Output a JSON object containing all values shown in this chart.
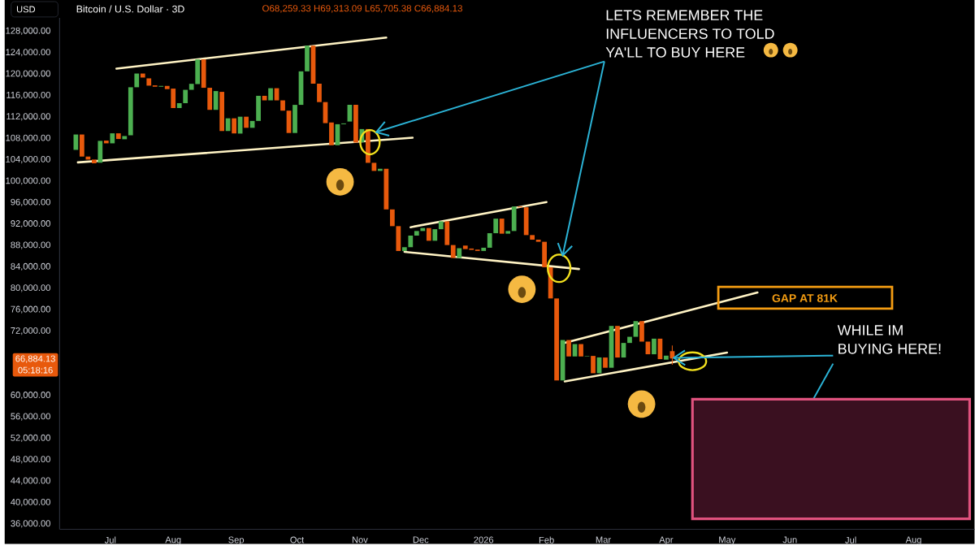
{
  "chart_data": {
    "type": "candlestick",
    "title": "Bitcoin / U.S. Dollar · 3D",
    "x": [
      "2025-06-14",
      "2025-06-17",
      "2025-06-20",
      "2025-06-23",
      "2025-06-26",
      "2025-06-29",
      "2025-07-02",
      "2025-07-05",
      "2025-07-08",
      "2025-07-11",
      "2025-07-14",
      "2025-07-17",
      "2025-07-20",
      "2025-07-23",
      "2025-07-26",
      "2025-07-29",
      "2025-08-01",
      "2025-08-04",
      "2025-08-07",
      "2025-08-10",
      "2025-08-13",
      "2025-08-16",
      "2025-08-19",
      "2025-08-22",
      "2025-08-25",
      "2025-08-28",
      "2025-08-31",
      "2025-09-03",
      "2025-09-06",
      "2025-09-09",
      "2025-09-12",
      "2025-09-15",
      "2025-09-18",
      "2025-09-21",
      "2025-09-24",
      "2025-09-27",
      "2025-09-30",
      "2025-10-03",
      "2025-10-06",
      "2025-10-09",
      "2025-10-12",
      "2025-10-15",
      "2025-10-18",
      "2025-10-21",
      "2025-10-24",
      "2025-10-27",
      "2025-10-30",
      "2025-11-02",
      "2025-11-05",
      "2025-11-08",
      "2025-11-11",
      "2025-11-14",
      "2025-11-17",
      "2025-11-20",
      "2025-11-23",
      "2025-11-26",
      "2025-11-29",
      "2025-12-02",
      "2025-12-05",
      "2025-12-08",
      "2025-12-11",
      "2025-12-14",
      "2025-12-17",
      "2025-12-20",
      "2025-12-23",
      "2025-12-26",
      "2025-12-29",
      "2026-01-01",
      "2026-01-04",
      "2026-01-07",
      "2026-01-10",
      "2026-01-13",
      "2026-01-16",
      "2026-01-19",
      "2026-01-22",
      "2026-01-25",
      "2026-01-28",
      "2026-01-31",
      "2026-02-03",
      "2026-02-06",
      "2026-02-09",
      "2026-02-12",
      "2026-02-15",
      "2026-02-18",
      "2026-02-21",
      "2026-02-24",
      "2026-02-27",
      "2026-03-02",
      "2026-03-05",
      "2026-03-08",
      "2026-03-11",
      "2026-03-14",
      "2026-03-17",
      "2026-03-20",
      "2026-03-23",
      "2026-03-26",
      "2026-03-29",
      "2026-04-01",
      "2026-04-04"
    ],
    "ohlc": [
      [
        105840,
        108710,
        105840,
        108710
      ],
      [
        108710,
        108710,
        104590,
        104590
      ],
      [
        104590,
        104590,
        104030,
        104030
      ],
      [
        104030,
        104030,
        103330,
        103330
      ],
      [
        103440,
        107520,
        103440,
        107520
      ],
      [
        107570,
        107570,
        107060,
        107060
      ],
      [
        107060,
        108930,
        107060,
        108930
      ],
      [
        108930,
        108930,
        107870,
        107870
      ],
      [
        107820,
        108420,
        107820,
        108420
      ],
      [
        108560,
        117530,
        108560,
        117530
      ],
      [
        117530,
        120090,
        117530,
        120090
      ],
      [
        120090,
        120090,
        119340,
        119340
      ],
      [
        119190,
        119190,
        117830,
        117830
      ],
      [
        117880,
        117880,
        117630,
        117630
      ],
      [
        117630,
        117780,
        117630,
        117780
      ],
      [
        117780,
        117780,
        117180,
        117180
      ],
      [
        117280,
        117280,
        113650,
        113650
      ],
      [
        113650,
        114560,
        113650,
        114560
      ],
      [
        114560,
        117050,
        114560,
        117050
      ],
      [
        117050,
        118170,
        117050,
        118170
      ],
      [
        118120,
        122740,
        118120,
        122740
      ],
      [
        122740,
        122740,
        117430,
        117430
      ],
      [
        117430,
        117430,
        113310,
        113310
      ],
      [
        113310,
        116820,
        113310,
        116820
      ],
      [
        116670,
        116670,
        109360,
        109360
      ],
      [
        109360,
        111730,
        109360,
        111730
      ],
      [
        111730,
        111730,
        108910,
        108910
      ],
      [
        108880,
        112030,
        108880,
        112030
      ],
      [
        112030,
        112030,
        109960,
        109960
      ],
      [
        109960,
        111240,
        109960,
        111240
      ],
      [
        111240,
        115930,
        111240,
        115930
      ],
      [
        115930,
        115930,
        115080,
        115080
      ],
      [
        115080,
        117350,
        115080,
        117350
      ],
      [
        117350,
        117350,
        115080,
        115080
      ],
      [
        115080,
        115080,
        113160,
        113160
      ],
      [
        113160,
        113160,
        108990,
        108990
      ],
      [
        108990,
        114240,
        108990,
        114240
      ],
      [
        114240,
        120500,
        114240,
        120500
      ],
      [
        120500,
        125300,
        120500,
        125300
      ],
      [
        125300,
        125300,
        118200,
        118200
      ],
      [
        118200,
        118200,
        114760,
        114760
      ],
      [
        114760,
        114760,
        110830,
        110830
      ],
      [
        110950,
        110950,
        106700,
        106700
      ],
      [
        106700,
        110630,
        106700,
        110630
      ],
      [
        110630,
        110780,
        110630,
        110780
      ],
      [
        111130,
        114250,
        111130,
        114250
      ],
      [
        114250,
        114250,
        107200,
        107200
      ],
      [
        107270,
        109720,
        107270,
        109720
      ],
      [
        109720,
        109720,
        103420,
        103420
      ],
      [
        103420,
        103420,
        101910,
        101910
      ],
      [
        101910,
        102310,
        101910,
        102310
      ],
      [
        102310,
        102310,
        94720,
        94720
      ],
      [
        94720,
        94720,
        91600,
        91600
      ],
      [
        91600,
        91600,
        86960,
        86960
      ],
      [
        86960,
        87670,
        86960,
        87670
      ],
      [
        87670,
        89830,
        87670,
        89830
      ],
      [
        89830,
        90690,
        89830,
        90690
      ],
      [
        90690,
        91250,
        90690,
        91250
      ],
      [
        91250,
        91250,
        88870,
        88870
      ],
      [
        88870,
        91030,
        88870,
        91030
      ],
      [
        91030,
        92500,
        91030,
        92500
      ],
      [
        92500,
        92500,
        88070,
        88070
      ],
      [
        88070,
        88070,
        85660,
        85660
      ],
      [
        85660,
        87480,
        85660,
        87480
      ],
      [
        87970,
        87970,
        87320,
        87320
      ],
      [
        87420,
        87420,
        87170,
        87170
      ],
      [
        87220,
        87220,
        86970,
        86970
      ],
      [
        86970,
        87570,
        86970,
        87570
      ],
      [
        87570,
        90280,
        87570,
        90280
      ],
      [
        90280,
        93000,
        90280,
        93000
      ],
      [
        93000,
        93000,
        90190,
        90190
      ],
      [
        90190,
        90690,
        90190,
        90690
      ],
      [
        90690,
        95270,
        90690,
        95270
      ],
      [
        95270,
        95270,
        95120,
        95120
      ],
      [
        95120,
        95120,
        89930,
        89930
      ],
      [
        89930,
        89930,
        89070,
        89070
      ],
      [
        89070,
        89070,
        88680,
        88680
      ],
      [
        88680,
        88680,
        83930,
        83930
      ],
      [
        83930,
        83930,
        78100,
        78100
      ],
      [
        78100,
        78100,
        62790,
        62790
      ],
      [
        62790,
        70340,
        62790,
        70340
      ],
      [
        70340,
        70340,
        67270,
        67270
      ],
      [
        67270,
        69580,
        67270,
        69580
      ],
      [
        69580,
        69580,
        67270,
        67270
      ],
      [
        67270,
        67350,
        67270,
        67350
      ],
      [
        67370,
        67370,
        64140,
        64140
      ],
      [
        64140,
        67090,
        64140,
        67090
      ],
      [
        67070,
        67070,
        65160,
        65160
      ],
      [
        65160,
        72970,
        65160,
        72970
      ],
      [
        72970,
        72970,
        67070,
        67070
      ],
      [
        67070,
        69790,
        67070,
        69790
      ],
      [
        69790,
        70940,
        69790,
        70940
      ],
      [
        70940,
        73870,
        70940,
        73870
      ],
      [
        73870,
        73870,
        70040,
        70040
      ],
      [
        70040,
        70040,
        67680,
        67680
      ],
      [
        67680,
        70590,
        67680,
        70590
      ],
      [
        70590,
        70590,
        66770,
        66770
      ],
      [
        66670,
        67420,
        66670,
        67420
      ],
      [
        68259.33,
        69313.09,
        65705.38,
        66884.13
      ]
    ],
    "colors": [
      "#4caf50",
      "#e8590c",
      "#e8590c",
      "#e8590c",
      "#4caf50",
      "#e8590c",
      "#4caf50",
      "#e8590c",
      "#4caf50",
      "#4caf50",
      "#4caf50",
      "#e8590c",
      "#e8590c",
      "#e8590c",
      "#4caf50",
      "#e8590c",
      "#e8590c",
      "#4caf50",
      "#4caf50",
      "#4caf50",
      "#4caf50",
      "#e8590c",
      "#e8590c",
      "#4caf50",
      "#e8590c",
      "#4caf50",
      "#e8590c",
      "#4caf50",
      "#e8590c",
      "#4caf50",
      "#4caf50",
      "#e8590c",
      "#4caf50",
      "#e8590c",
      "#e8590c",
      "#e8590c",
      "#4caf50",
      "#4caf50",
      "#4caf50",
      "#e8590c",
      "#e8590c",
      "#e8590c",
      "#e8590c",
      "#4caf50",
      "#4caf50",
      "#4caf50",
      "#e8590c",
      "#4caf50",
      "#e8590c",
      "#e8590c",
      "#4caf50",
      "#e8590c",
      "#e8590c",
      "#e8590c",
      "#4caf50",
      "#4caf50",
      "#4caf50",
      "#4caf50",
      "#e8590c",
      "#4caf50",
      "#4caf50",
      "#e8590c",
      "#e8590c",
      "#4caf50",
      "#e8590c",
      "#e8590c",
      "#e8590c",
      "#4caf50",
      "#4caf50",
      "#4caf50",
      "#e8590c",
      "#4caf50",
      "#4caf50",
      "#e8590c",
      "#e8590c",
      "#e8590c",
      "#e8590c",
      "#e8590c",
      "#e8590c",
      "#e8590c",
      "#4caf50",
      "#e8590c",
      "#4caf50",
      "#e8590c",
      "#4caf50",
      "#e8590c",
      "#4caf50",
      "#e8590c",
      "#4caf50",
      "#e8590c",
      "#4caf50",
      "#4caf50",
      "#4caf50",
      "#e8590c",
      "#e8590c",
      "#4caf50",
      "#e8590c",
      "#4caf50",
      "#e8590c"
    ],
    "series": [
      {
        "type": "line",
        "color": "#fff3c4",
        "x": [
          "2025-07-04",
          "2025-11-14"
        ],
        "values": [
          121000,
          126800
        ]
      },
      {
        "type": "line",
        "color": "#fff3c4",
        "x": [
          "2025-06-15",
          "2025-11-27"
        ],
        "values": [
          103500,
          108100
        ]
      },
      {
        "type": "line",
        "color": "#fff3c4",
        "x": [
          "2025-11-26",
          "2026-02-01"
        ],
        "values": [
          91400,
          96100
        ]
      },
      {
        "type": "line",
        "color": "#fff3c4",
        "x": [
          "2025-11-23",
          "2026-02-17"
        ],
        "values": [
          86800,
          83600
        ]
      },
      {
        "type": "line",
        "color": "#fff3c4",
        "x": [
          "2026-02-10",
          "2026-05-16"
        ],
        "values": [
          69800,
          79200
        ]
      },
      {
        "type": "line",
        "color": "#fff3c4",
        "x": [
          "2026-02-10",
          "2026-05-01"
        ],
        "values": [
          62600,
          68000
        ]
      }
    ],
    "xlim": [
      "2025-06-06",
      "2026-08-31"
    ],
    "xticks": [
      {
        "value": "2025-07-01",
        "label": "Jul"
      },
      {
        "value": "2025-08-01",
        "label": "Aug"
      },
      {
        "value": "2025-09-01",
        "label": "Sep"
      },
      {
        "value": "2025-10-01",
        "label": "Oct"
      },
      {
        "value": "2025-11-01",
        "label": "Nov"
      },
      {
        "value": "2025-12-01",
        "label": "Dec"
      },
      {
        "value": "2026-01-01",
        "label": "2026"
      },
      {
        "value": "2026-02-01",
        "label": "Feb"
      },
      {
        "value": "2026-03-01",
        "label": "Mar"
      },
      {
        "value": "2026-04-01",
        "label": "Apr"
      },
      {
        "value": "2026-05-01",
        "label": "May"
      },
      {
        "value": "2026-06-01",
        "label": "Jun"
      },
      {
        "value": "2026-07-01",
        "label": "Jul"
      },
      {
        "value": "2026-08-01",
        "label": "Aug"
      }
    ],
    "ylim": [
      35000,
      130500
    ],
    "yticks": [
      {
        "value": 36000,
        "label": "36,000.00"
      },
      {
        "value": 40000,
        "label": "40,000.00"
      },
      {
        "value": 44000,
        "label": "44,000.00"
      },
      {
        "value": 48000,
        "label": "48,000.00"
      },
      {
        "value": 52000,
        "label": "52,000.00"
      },
      {
        "value": 56000,
        "label": "56,000.00"
      },
      {
        "value": 60000,
        "label": "60,000.00"
      },
      {
        "value": 72000,
        "label": "72,000.00"
      },
      {
        "value": 76000,
        "label": "76,000.00"
      },
      {
        "value": 80000,
        "label": "80,000.00"
      },
      {
        "value": 84000,
        "label": "84,000.00"
      },
      {
        "value": 88000,
        "label": "88,000.00"
      },
      {
        "value": 92000,
        "label": "92,000.00"
      },
      {
        "value": 96000,
        "label": "96,000.00"
      },
      {
        "value": 100000,
        "label": "100,000.00"
      },
      {
        "value": 104000,
        "label": "104,000.00"
      },
      {
        "value": 108000,
        "label": "108,000.00"
      },
      {
        "value": 112000,
        "label": "112,000.00"
      },
      {
        "value": 116000,
        "label": "116,000.00"
      },
      {
        "value": 120000,
        "label": "120,000.00"
      },
      {
        "value": 124000,
        "label": "124,000.00"
      },
      {
        "value": 128000,
        "label": "128,000.00"
      }
    ],
    "annotations": [
      "LETS REMEMBER THE INFLUENCERS TO TOLD YA'LL TO BUY HERE",
      "GAP AT 81K",
      {
        "text": "WHILE IM BUYING HERE!",
        "x": "2026-04-04",
        "y": 67000
      },
      "USD",
      "O68,259.33 H69,313.09 L65,705.38 C66,884.13",
      "66,884.13",
      "05:18:16"
    ]
  }
}
